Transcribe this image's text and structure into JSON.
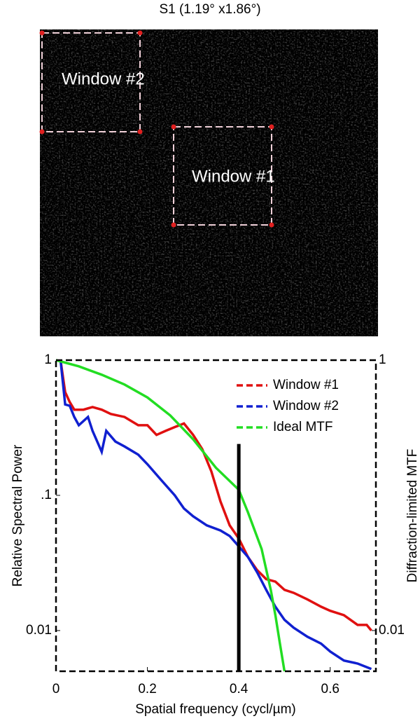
{
  "image": {
    "title": "S1 (1.19° x1.86°)",
    "windows": [
      {
        "label": "Window #2"
      },
      {
        "label": "Window #1"
      }
    ]
  },
  "chart_data": {
    "type": "line",
    "ylog": true,
    "xlabel": "Spatial frequency (cycl/µm)",
    "ylabel": "Relative Spectral Power",
    "y2label": "Diffraction-limited MTF",
    "xlim": [
      0,
      0.7
    ],
    "xticks": [
      0,
      0.2,
      0.4,
      0.6
    ],
    "ylim": [
      0.005,
      1
    ],
    "yticks": [
      1,
      {
        "value": 0.1,
        "label": ".1"
      },
      0.01
    ],
    "y2lim": [
      0.005,
      1
    ],
    "y2ticks": [
      1,
      0.01
    ],
    "legend": "upper right",
    "vline": {
      "x": 0.4,
      "top": 0.24,
      "color": "#000000"
    },
    "series": [
      {
        "name": "Window #1",
        "color": "#e01010",
        "x": [
          0.01,
          0.02,
          0.03,
          0.04,
          0.06,
          0.08,
          0.1,
          0.12,
          0.15,
          0.18,
          0.2,
          0.22,
          0.24,
          0.26,
          0.28,
          0.3,
          0.32,
          0.34,
          0.36,
          0.38,
          0.4,
          0.42,
          0.44,
          0.46,
          0.48,
          0.5,
          0.52,
          0.55,
          0.58,
          0.6,
          0.63,
          0.66,
          0.68,
          0.69
        ],
        "values": [
          1,
          0.58,
          0.49,
          0.43,
          0.43,
          0.45,
          0.43,
          0.4,
          0.38,
          0.33,
          0.33,
          0.28,
          0.3,
          0.32,
          0.34,
          0.28,
          0.22,
          0.15,
          0.09,
          0.06,
          0.048,
          0.035,
          0.028,
          0.024,
          0.023,
          0.02,
          0.019,
          0.017,
          0.015,
          0.014,
          0.013,
          0.011,
          0.011,
          0.01
        ]
      },
      {
        "name": "Window #2",
        "color": "#1020d0",
        "x": [
          0.01,
          0.02,
          0.03,
          0.04,
          0.05,
          0.07,
          0.08,
          0.1,
          0.11,
          0.13,
          0.15,
          0.18,
          0.2,
          0.23,
          0.26,
          0.28,
          0.3,
          0.33,
          0.36,
          0.38,
          0.4,
          0.42,
          0.44,
          0.46,
          0.48,
          0.5,
          0.52,
          0.55,
          0.58,
          0.6,
          0.63,
          0.66,
          0.69
        ],
        "values": [
          1,
          0.47,
          0.46,
          0.38,
          0.33,
          0.38,
          0.3,
          0.21,
          0.3,
          0.25,
          0.23,
          0.2,
          0.17,
          0.13,
          0.1,
          0.08,
          0.07,
          0.06,
          0.055,
          0.05,
          0.042,
          0.035,
          0.027,
          0.02,
          0.015,
          0.012,
          0.0105,
          0.009,
          0.008,
          0.007,
          0.006,
          0.0057,
          0.0052
        ]
      },
      {
        "name": "Ideal MTF",
        "color": "#22dd22",
        "axis": "y2",
        "x": [
          0,
          0.05,
          0.1,
          0.15,
          0.2,
          0.25,
          0.3,
          0.35,
          0.4,
          0.42,
          0.45,
          0.47,
          0.48,
          0.49,
          0.5
        ],
        "values": [
          1,
          0.9,
          0.78,
          0.66,
          0.53,
          0.39,
          0.26,
          0.16,
          0.11,
          0.075,
          0.04,
          0.02,
          0.013,
          0.008,
          0.005
        ]
      }
    ]
  }
}
